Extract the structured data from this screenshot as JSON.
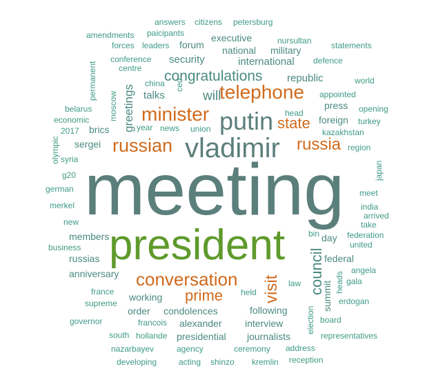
{
  "palette": {
    "teal": "#4a8a80",
    "slate": "#5b7f7b",
    "orange": "#d06a1d",
    "green": "#5f9a2c",
    "seafoam": "#3e9a86"
  },
  "words": [
    {
      "text": "meeting",
      "color": "slate"
    },
    {
      "text": "president",
      "color": "green"
    },
    {
      "text": "vladimir",
      "color": "slate"
    },
    {
      "text": "putin",
      "color": "slate"
    },
    {
      "text": "telephone",
      "color": "orange"
    },
    {
      "text": "minister",
      "color": "orange"
    },
    {
      "text": "russian",
      "color": "orange"
    },
    {
      "text": "russia",
      "color": "orange"
    },
    {
      "text": "state",
      "color": "orange"
    },
    {
      "text": "conversation",
      "color": "orange"
    },
    {
      "text": "prime",
      "color": "orange"
    },
    {
      "text": "visit",
      "color": "orange"
    },
    {
      "text": "council",
      "color": "teal"
    },
    {
      "text": "congratulations",
      "color": "teal"
    },
    {
      "text": "will",
      "color": "teal"
    },
    {
      "text": "greetings",
      "color": "teal"
    },
    {
      "text": "talks",
      "color": "teal"
    },
    {
      "text": "security",
      "color": "teal"
    },
    {
      "text": "international",
      "color": "teal"
    },
    {
      "text": "republic",
      "color": "teal"
    },
    {
      "text": "national",
      "color": "teal"
    },
    {
      "text": "military",
      "color": "teal"
    },
    {
      "text": "executive",
      "color": "teal"
    },
    {
      "text": "forum",
      "color": "teal"
    },
    {
      "text": "foreign",
      "color": "teal"
    },
    {
      "text": "press",
      "color": "teal"
    },
    {
      "text": "sergei",
      "color": "teal"
    },
    {
      "text": "brics",
      "color": "teal"
    },
    {
      "text": "federal",
      "color": "teal"
    },
    {
      "text": "day",
      "color": "teal"
    },
    {
      "text": "members",
      "color": "teal"
    },
    {
      "text": "russias",
      "color": "teal"
    },
    {
      "text": "anniversary",
      "color": "teal"
    },
    {
      "text": "working",
      "color": "teal"
    },
    {
      "text": "condolences",
      "color": "teal"
    },
    {
      "text": "following",
      "color": "teal"
    },
    {
      "text": "alexander",
      "color": "teal"
    },
    {
      "text": "presidential",
      "color": "teal"
    },
    {
      "text": "journalists",
      "color": "teal"
    },
    {
      "text": "interview",
      "color": "teal"
    },
    {
      "text": "summit",
      "color": "teal"
    },
    {
      "text": "order",
      "color": "teal"
    },
    {
      "text": "answers",
      "color": "seafoam"
    },
    {
      "text": "citizens",
      "color": "seafoam"
    },
    {
      "text": "petersburg",
      "color": "seafoam"
    },
    {
      "text": "amendments",
      "color": "seafoam"
    },
    {
      "text": "paicipants",
      "color": "seafoam"
    },
    {
      "text": "nursultan",
      "color": "seafoam"
    },
    {
      "text": "forces",
      "color": "seafoam"
    },
    {
      "text": "leaders",
      "color": "seafoam"
    },
    {
      "text": "statements",
      "color": "seafoam"
    },
    {
      "text": "conference",
      "color": "seafoam"
    },
    {
      "text": "defence",
      "color": "seafoam"
    },
    {
      "text": "centre",
      "color": "seafoam"
    },
    {
      "text": "permanent",
      "color": "seafoam"
    },
    {
      "text": "china",
      "color": "seafoam"
    },
    {
      "text": "moscow",
      "color": "seafoam"
    },
    {
      "text": "ceo",
      "color": "seafoam"
    },
    {
      "text": "world",
      "color": "seafoam"
    },
    {
      "text": "appointed",
      "color": "seafoam"
    },
    {
      "text": "belarus",
      "color": "seafoam"
    },
    {
      "text": "economic",
      "color": "seafoam"
    },
    {
      "text": "opening",
      "color": "seafoam"
    },
    {
      "text": "head",
      "color": "seafoam"
    },
    {
      "text": "turkey",
      "color": "seafoam"
    },
    {
      "text": "2017",
      "color": "seafoam"
    },
    {
      "text": "year",
      "color": "seafoam"
    },
    {
      "text": "news",
      "color": "seafoam"
    },
    {
      "text": "union",
      "color": "seafoam"
    },
    {
      "text": "kazakhstan",
      "color": "seafoam"
    },
    {
      "text": "olympic",
      "color": "seafoam"
    },
    {
      "text": "region",
      "color": "seafoam"
    },
    {
      "text": "syria",
      "color": "seafoam"
    },
    {
      "text": "japan",
      "color": "seafoam"
    },
    {
      "text": "g20",
      "color": "seafoam"
    },
    {
      "text": "german",
      "color": "seafoam"
    },
    {
      "text": "meet",
      "color": "seafoam"
    },
    {
      "text": "merkel",
      "color": "seafoam"
    },
    {
      "text": "india",
      "color": "seafoam"
    },
    {
      "text": "arrived",
      "color": "seafoam"
    },
    {
      "text": "new",
      "color": "seafoam"
    },
    {
      "text": "take",
      "color": "seafoam"
    },
    {
      "text": "bin",
      "color": "seafoam"
    },
    {
      "text": "federation",
      "color": "seafoam"
    },
    {
      "text": "business",
      "color": "seafoam"
    },
    {
      "text": "united",
      "color": "seafoam"
    },
    {
      "text": "angela",
      "color": "seafoam"
    },
    {
      "text": "gala",
      "color": "seafoam"
    },
    {
      "text": "heads",
      "color": "seafoam"
    },
    {
      "text": "law",
      "color": "seafoam"
    },
    {
      "text": "france",
      "color": "seafoam"
    },
    {
      "text": "held",
      "color": "seafoam"
    },
    {
      "text": "supreme",
      "color": "seafoam"
    },
    {
      "text": "erdogan",
      "color": "seafoam"
    },
    {
      "text": "governor",
      "color": "seafoam"
    },
    {
      "text": "francois",
      "color": "seafoam"
    },
    {
      "text": "election",
      "color": "seafoam"
    },
    {
      "text": "board",
      "color": "seafoam"
    },
    {
      "text": "south",
      "color": "seafoam"
    },
    {
      "text": "hollande",
      "color": "seafoam"
    },
    {
      "text": "representatives",
      "color": "seafoam"
    },
    {
      "text": "nazarbayev",
      "color": "seafoam"
    },
    {
      "text": "agency",
      "color": "seafoam"
    },
    {
      "text": "ceremony",
      "color": "seafoam"
    },
    {
      "text": "address",
      "color": "seafoam"
    },
    {
      "text": "developing",
      "color": "seafoam"
    },
    {
      "text": "acting",
      "color": "seafoam"
    },
    {
      "text": "shinzo",
      "color": "seafoam"
    },
    {
      "text": "kremlin",
      "color": "seafoam"
    },
    {
      "text": "reception",
      "color": "seafoam"
    }
  ]
}
